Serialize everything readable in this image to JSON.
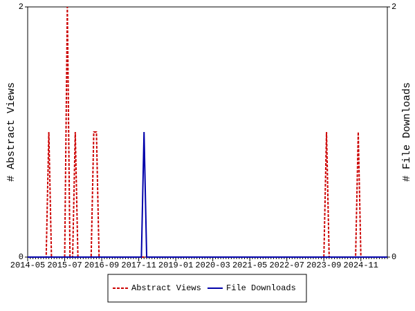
{
  "chart_data": {
    "type": "line",
    "categories": [
      "2014-05",
      null,
      null,
      null,
      null,
      null,
      null,
      null,
      null,
      null,
      null,
      null,
      null,
      null,
      "2015-07",
      null,
      null,
      null,
      null,
      null,
      null,
      null,
      null,
      null,
      null,
      null,
      null,
      null,
      "2016-09",
      null,
      null,
      null,
      null,
      null,
      null,
      null,
      null,
      null,
      null,
      null,
      null,
      null,
      "2017-11",
      null,
      null,
      null,
      null,
      null,
      null,
      null,
      null,
      null,
      null,
      null,
      null,
      null,
      "2019-01",
      null,
      null,
      null,
      null,
      null,
      null,
      null,
      null,
      null,
      null,
      null,
      null,
      null,
      "2020-03",
      null,
      null,
      null,
      null,
      null,
      null,
      null,
      null,
      null,
      null,
      null,
      null,
      null,
      "2021-05",
      null,
      null,
      null,
      null,
      null,
      null,
      null,
      null,
      null,
      null,
      null,
      null,
      null,
      "2022-07",
      null,
      null,
      null,
      null,
      null,
      null,
      null,
      null,
      null,
      null,
      null,
      null,
      null,
      "2023-09",
      null,
      null,
      null,
      null,
      null,
      null,
      null,
      null,
      null,
      null,
      null,
      null,
      null,
      "2024-11",
      null,
      null,
      null,
      null,
      null,
      null,
      null,
      null,
      null,
      null
    ],
    "series": [
      {
        "name": "Abstract Views",
        "color": "#cc0000",
        "dash": true,
        "axis": "y",
        "values": [
          0,
          0,
          0,
          0,
          0,
          0,
          0,
          0,
          1,
          0,
          0,
          0,
          0,
          0,
          0,
          2,
          0,
          0,
          1,
          0,
          0,
          0,
          0,
          0,
          0,
          1,
          1,
          0,
          0,
          0,
          0,
          0,
          0,
          0,
          0,
          0,
          0,
          0,
          0,
          0,
          0,
          0,
          0,
          0,
          0,
          0,
          0,
          0,
          0,
          0,
          0,
          0,
          0,
          0,
          0,
          0,
          0,
          0,
          0,
          0,
          0,
          0,
          0,
          0,
          0,
          0,
          0,
          0,
          0,
          0,
          0,
          0,
          0,
          0,
          0,
          0,
          0,
          0,
          0,
          0,
          0,
          0,
          0,
          0,
          0,
          0,
          0,
          0,
          0,
          0,
          0,
          0,
          0,
          0,
          0,
          0,
          0,
          0,
          0,
          0,
          0,
          0,
          0,
          0,
          0,
          0,
          0,
          0,
          0,
          0,
          0,
          0,
          0,
          1,
          0,
          0,
          0,
          0,
          0,
          0,
          0,
          0,
          0,
          0,
          0,
          1,
          0,
          0,
          0,
          0,
          0,
          0,
          0,
          0,
          0,
          0,
          0
        ]
      },
      {
        "name": "File Downloads",
        "color": "#0000aa",
        "dash": false,
        "axis": "y2",
        "values": [
          0,
          0,
          0,
          0,
          0,
          0,
          0,
          0,
          0,
          0,
          0,
          0,
          0,
          0,
          0,
          0,
          0,
          0,
          0,
          0,
          0,
          0,
          0,
          0,
          0,
          0,
          0,
          0,
          0,
          0,
          0,
          0,
          0,
          0,
          0,
          0,
          0,
          0,
          0,
          0,
          0,
          0,
          0,
          0,
          1,
          0,
          0,
          0,
          0,
          0,
          0,
          0,
          0,
          0,
          0,
          0,
          0,
          0,
          0,
          0,
          0,
          0,
          0,
          0,
          0,
          0,
          0,
          0,
          0,
          0,
          0,
          0,
          0,
          0,
          0,
          0,
          0,
          0,
          0,
          0,
          0,
          0,
          0,
          0,
          0,
          0,
          0,
          0,
          0,
          0,
          0,
          0,
          0,
          0,
          0,
          0,
          0,
          0,
          0,
          0,
          0,
          0,
          0,
          0,
          0,
          0,
          0,
          0,
          0,
          0,
          0,
          0,
          0,
          0,
          0,
          0,
          0,
          0,
          0,
          0,
          0,
          0,
          0,
          0,
          0,
          0,
          0,
          0,
          0,
          0,
          0,
          0,
          0,
          0,
          0,
          0,
          0
        ]
      }
    ],
    "y_label": "# Abstract Views",
    "y2_label": "# File Downloads",
    "ylim": [
      0,
      2
    ],
    "yticks": [
      0,
      2
    ],
    "y2lim": [
      0,
      2
    ],
    "y2ticks": [
      0,
      2
    ],
    "legend": "bottom",
    "grid": false
  }
}
